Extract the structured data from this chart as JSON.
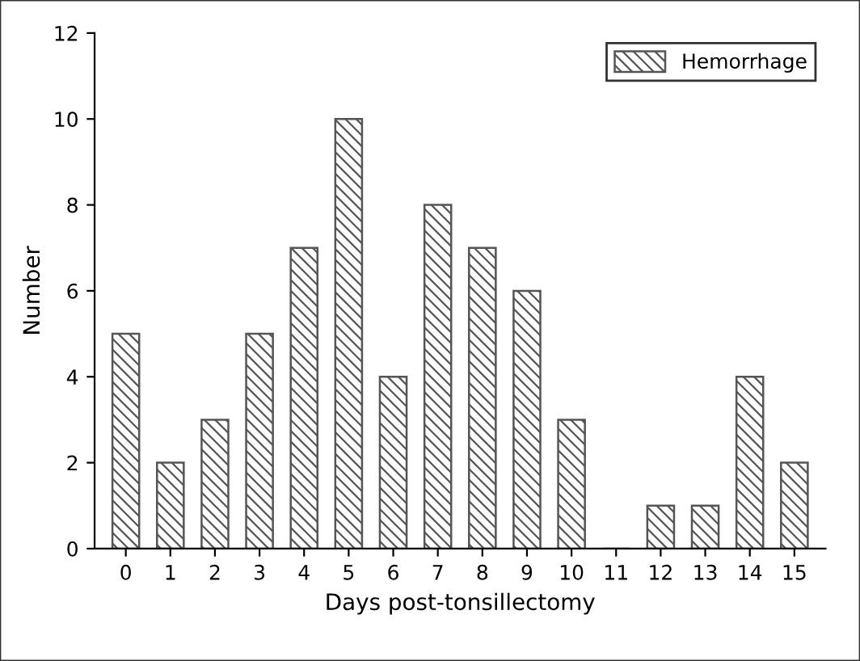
{
  "chart_data": {
    "type": "bar",
    "xlabel": "Days post-tonsillectomy",
    "ylabel": "Number",
    "categories": [
      "0",
      "1",
      "2",
      "3",
      "4",
      "5",
      "6",
      "7",
      "8",
      "9",
      "10",
      "11",
      "12",
      "13",
      "14",
      "15"
    ],
    "series": [
      {
        "name": "Hemorrhage",
        "color": "#555555",
        "values": [
          5,
          2,
          3,
          5,
          7,
          10,
          4,
          8,
          7,
          6,
          3,
          0,
          1,
          1,
          4,
          2
        ]
      }
    ],
    "ylim": [
      0,
      12
    ],
    "yticks": [
      0,
      2,
      4,
      6,
      8,
      10,
      12
    ],
    "grid": false,
    "legend": "top right"
  }
}
